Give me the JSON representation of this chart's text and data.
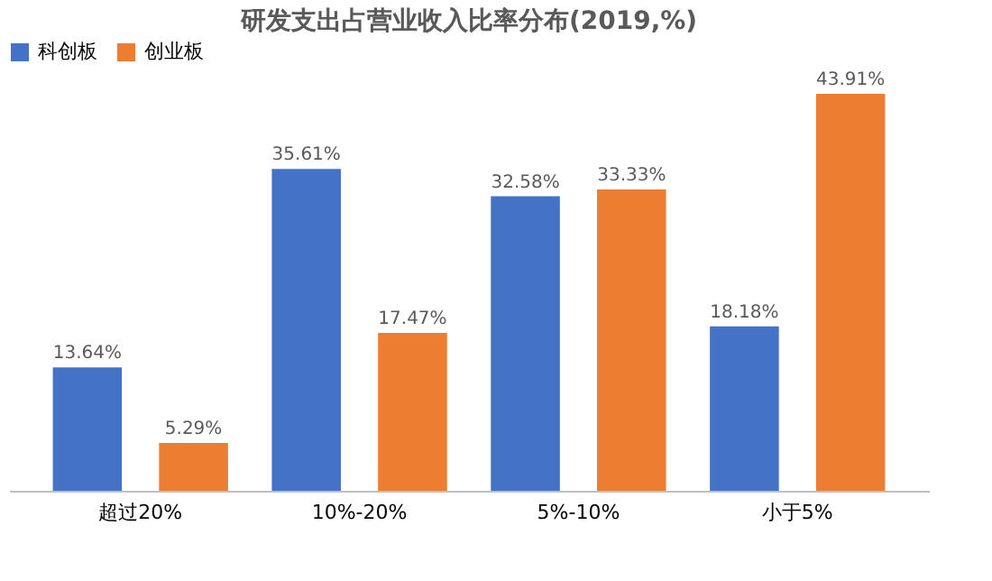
{
  "chart_data": {
    "type": "bar",
    "title": "研发支出占营业收入比率分布(2019,%)",
    "categories": [
      "超过20%",
      "10%-20%",
      "5%-10%",
      "小于5%"
    ],
    "series": [
      {
        "name": "科创板",
        "color": "#4472c4",
        "values": [
          13.64,
          35.61,
          32.58,
          18.18
        ],
        "value_labels": [
          "13.64%",
          "35.61%",
          "32.58%",
          "18.18%"
        ]
      },
      {
        "name": "创业板",
        "color": "#ed7d31",
        "values": [
          5.29,
          17.47,
          33.33,
          43.91
        ],
        "value_labels": [
          "5.29%",
          "17.47%",
          "33.33%",
          "43.91%"
        ]
      }
    ],
    "legend": "top",
    "grid": false
  }
}
